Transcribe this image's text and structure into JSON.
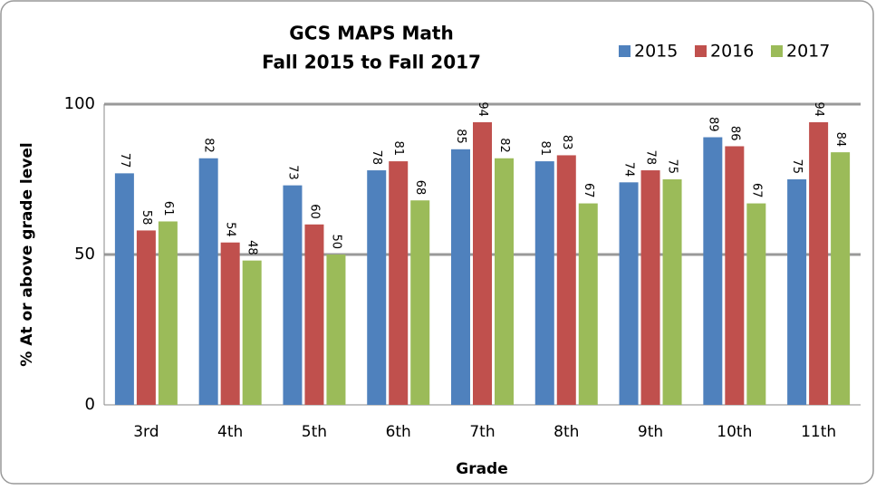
{
  "chart_data": {
    "type": "bar",
    "title": "GCS MAPS Math",
    "subtitle": "Fall 2015 to Fall 2017",
    "x_label": "Grade",
    "y_label": "% At or above grade level",
    "categories": [
      "3rd",
      "4th",
      "5th",
      "6th",
      "7th",
      "8th",
      "9th",
      "10th",
      "11th"
    ],
    "series": [
      {
        "name": "2015",
        "color": "#4f81bd",
        "values": [
          77,
          82,
          73,
          78,
          85,
          81,
          74,
          89,
          75
        ]
      },
      {
        "name": "2016",
        "color": "#c0504d",
        "values": [
          58,
          54,
          60,
          81,
          94,
          83,
          78,
          86,
          94
        ]
      },
      {
        "name": "2017",
        "color": "#9bbb59",
        "values": [
          61,
          48,
          50,
          68,
          82,
          67,
          75,
          67,
          84
        ]
      }
    ],
    "ylim": [
      0,
      100
    ],
    "yticks": [
      0,
      50,
      100
    ],
    "grid": true,
    "legend": "top-right"
  }
}
